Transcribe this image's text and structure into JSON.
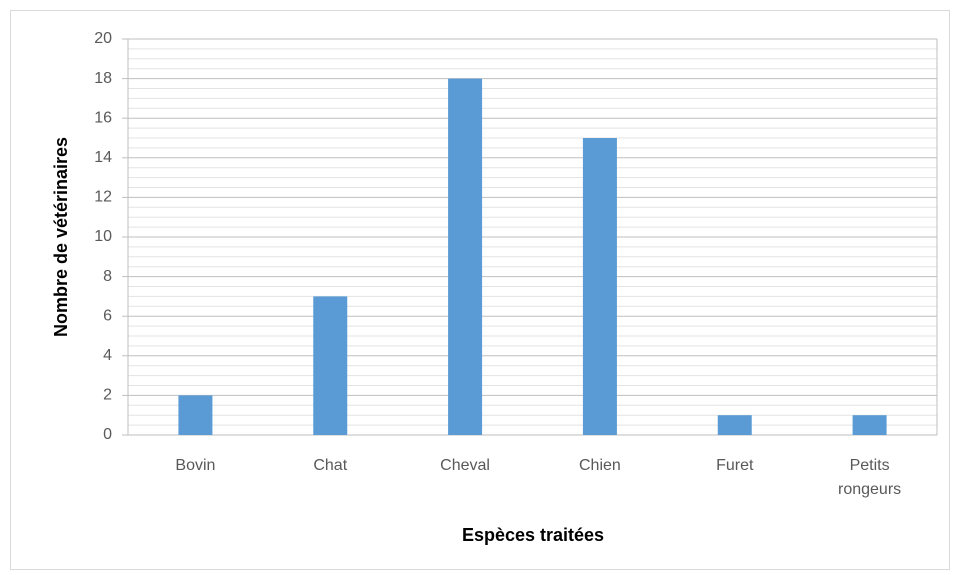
{
  "chart_data": {
    "type": "bar",
    "categories": [
      "Bovin",
      "Chat",
      "Cheval",
      "Chien",
      "Furet",
      "Petits rongeurs"
    ],
    "values": [
      2,
      7,
      18,
      15,
      1,
      1
    ],
    "color": "#5b9bd5",
    "xlabel": "Espèces traitées",
    "ylabel": "Nombre de vétérinaires",
    "ylim": [
      0,
      20
    ],
    "yticks": [
      0,
      2,
      4,
      6,
      8,
      10,
      12,
      14,
      16,
      18,
      20
    ],
    "grid": true
  }
}
